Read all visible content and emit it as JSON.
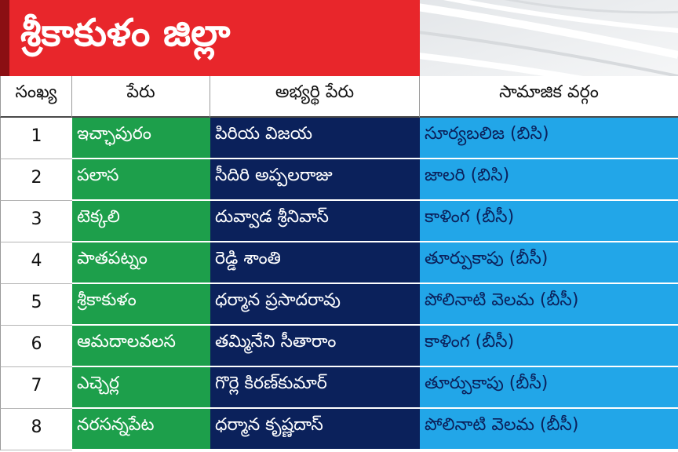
{
  "banner": {
    "title": "శ్రీకాకుళం జిల్లా"
  },
  "table": {
    "headers": {
      "number": "సంఖ్య",
      "constituency": "పేరు",
      "candidate": "అభ్యర్థి పేరు",
      "category": "సామాజిక వర్గం"
    },
    "rows": [
      {
        "number": "1",
        "constituency": "ఇచ్ఛాపురం",
        "candidate": "పిరియ విజయ",
        "category": "సూర్యబలిజ (బిసి)"
      },
      {
        "number": "2",
        "constituency": "పలాస",
        "candidate": "సీదిరి అప్పలరాజు",
        "category": "జాలరి (బిసి)"
      },
      {
        "number": "3",
        "constituency": "టెక్కలి",
        "candidate": "దువ్వాడ శ్రీనివాస్",
        "category": "కాళింగ (బీసీ)"
      },
      {
        "number": "4",
        "constituency": "పాతపట్నం",
        "candidate": "రెడ్డి శాంతి",
        "category": "తూర్పుకాపు (బీసీ)"
      },
      {
        "number": "5",
        "constituency": "శ్రీకాకుళం",
        "candidate": "ధర్మాన ప్రసాదరావు",
        "category": "పోలినాటి వెలమ (బీసీ)"
      },
      {
        "number": "6",
        "constituency": "ఆమదాలవలస",
        "candidate": "తమ్మినేని సీతారాం",
        "category": "కాళింగ (బీసీ)"
      },
      {
        "number": "7",
        "constituency": "ఎచ్చెర్ల",
        "candidate": "గొర్లె కిరణ్‌కుమార్",
        "category": "తూర్పుకాపు (బీసీ)"
      },
      {
        "number": "8",
        "constituency": "నరసన్నపేట",
        "candidate": "ధర్మాన కృష్ణదాస్",
        "category": "పోలినాటి వెలమ (బీసీ)"
      }
    ]
  },
  "colors": {
    "banner_red": "#e8262b",
    "banner_strip": "#8b0f13",
    "constituency_bg": "#1d9f4b",
    "candidate_bg": "#0b215b",
    "category_bg": "#22a6e8",
    "category_text": "#0b215b"
  }
}
